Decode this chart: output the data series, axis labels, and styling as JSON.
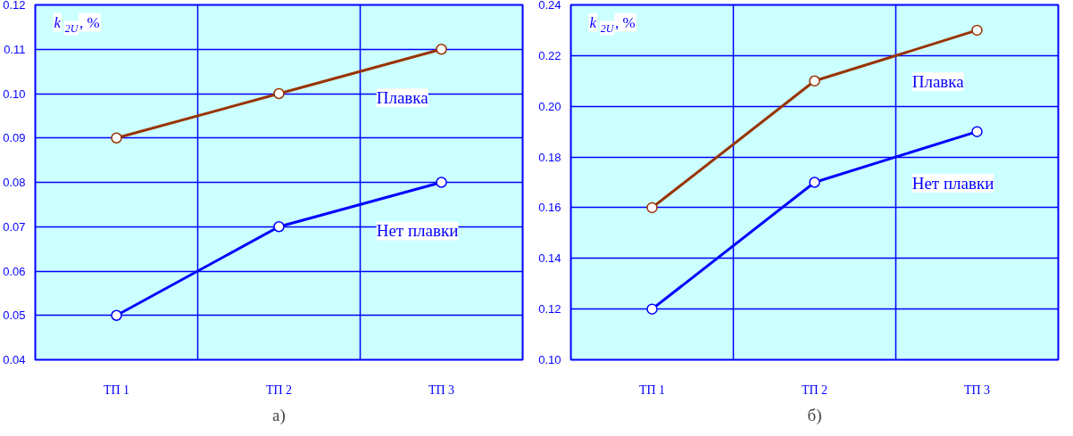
{
  "chart_data": [
    {
      "type": "line",
      "ylabel": "k$_{2U}$, %",
      "categories": [
        "ТП 1",
        "ТП 2",
        "ТП 3"
      ],
      "series": [
        {
          "name": "Плавка",
          "color": "#993300",
          "values": [
            0.09,
            0.1,
            0.11
          ]
        },
        {
          "name": "Нет плавки",
          "color": "#0000ff",
          "values": [
            0.05,
            0.07,
            0.08
          ]
        }
      ],
      "ylim": [
        0.04,
        0.12
      ],
      "yticks": [
        {
          "value": 0.04,
          "label": "0.04"
        },
        {
          "value": 0.05,
          "label": "0.05"
        },
        {
          "value": 0.06,
          "label": "0.06"
        },
        {
          "value": 0.07,
          "label": "0.07"
        },
        {
          "value": 0.08,
          "label": "0.08"
        },
        {
          "value": 0.09,
          "label": "0.09"
        },
        {
          "value": 0.1,
          "label": "0.10"
        },
        {
          "value": 0.11,
          "label": "0.11"
        },
        {
          "value": 0.12,
          "label": "0.12"
        }
      ],
      "grid": true,
      "marker": "circle",
      "annotations": [
        "а)"
      ]
    },
    {
      "type": "line",
      "ylabel": "k$_{2U}$, %",
      "categories": [
        "ТП 1",
        "ТП 2",
        "ТП 3"
      ],
      "series": [
        {
          "name": "Плавка",
          "color": "#993300",
          "values": [
            0.16,
            0.21,
            0.23
          ]
        },
        {
          "name": "Нет плавки",
          "color": "#0000ff",
          "values": [
            0.12,
            0.17,
            0.19
          ]
        }
      ],
      "ylim": [
        0.1,
        0.24
      ],
      "yticks": [
        {
          "value": 0.1,
          "label": "0.10"
        },
        {
          "value": 0.12,
          "label": "0.12"
        },
        {
          "value": 0.14,
          "label": "0.14"
        },
        {
          "value": 0.16,
          "label": "0.16"
        },
        {
          "value": 0.18,
          "label": "0.18"
        },
        {
          "value": 0.2,
          "label": "0.20"
        },
        {
          "value": 0.22,
          "label": "0.22"
        },
        {
          "value": 0.24,
          "label": "0.24"
        }
      ],
      "grid": true,
      "marker": "circle",
      "annotations": [
        "б)"
      ]
    }
  ]
}
